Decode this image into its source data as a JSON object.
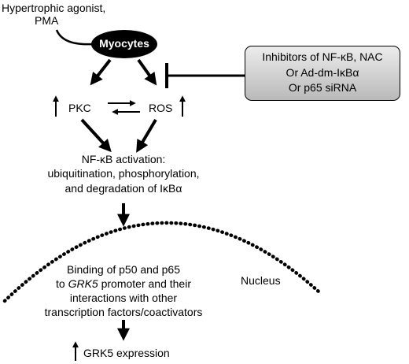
{
  "diagram": {
    "stimulus": [
      "Hypertrophic agonist,",
      "PMA"
    ],
    "myocytes": "Myocytes",
    "inhibitors": [
      "Inhibitors of NF-κB, NAC",
      "Or Ad-dm-IκBα",
      "Or p65 siRNA"
    ],
    "pkc": "PKC",
    "ros": "ROS",
    "nfkb_activation": [
      "NF-κB activation:",
      "ubiquitination, phosphorylation,",
      "and degradation of IκBα"
    ],
    "nucleus": "Nucleus",
    "binding_line1": "Binding of p50 and p65",
    "binding_line2_prefix": "to ",
    "binding_line2_gene": "GRK5",
    "binding_line2_suffix": " promoter and their",
    "binding_line3": "interactions with other",
    "binding_line4": "transcription factors/coactivators",
    "grk5_expression": "GRK5 expression",
    "colors": {
      "ink": "#000000",
      "myocytes_fill": "#000000",
      "box_fill_top": "#ececec",
      "box_fill_bottom": "#b9b9b9"
    }
  }
}
